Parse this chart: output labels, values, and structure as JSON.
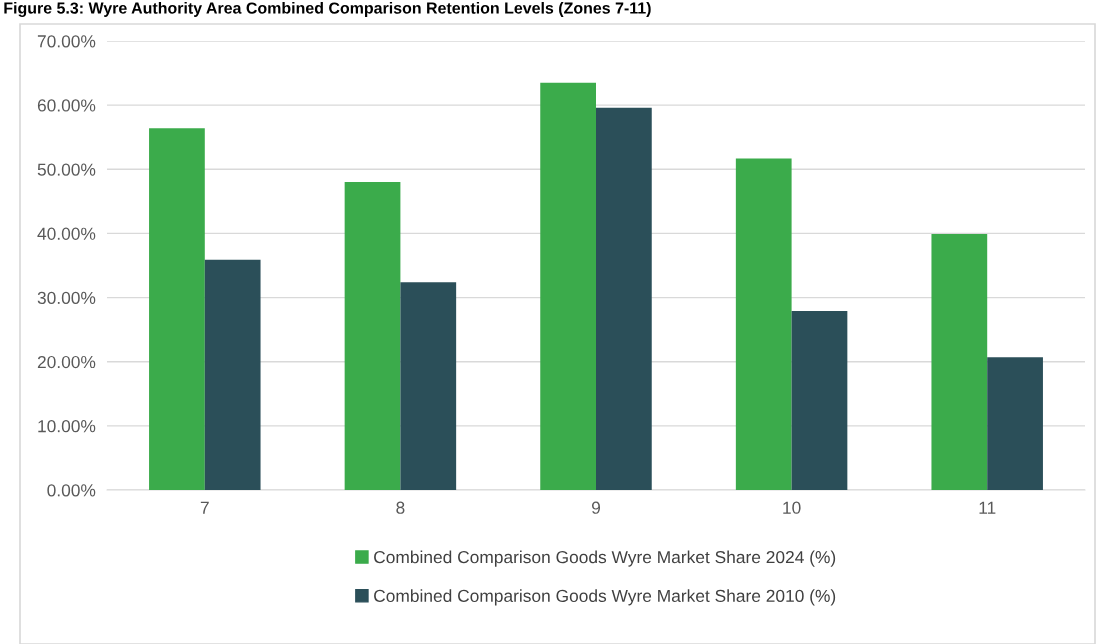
{
  "chart_data": {
    "type": "bar",
    "title": "Figure 5.3: Wyre Authority Area Combined Comparison Retention Levels (Zones 7-11)",
    "categories": [
      "7",
      "8",
      "9",
      "10",
      "11"
    ],
    "series": [
      {
        "name": "Combined Comparison Goods Wyre Market Share 2024 (%)",
        "color": "#3bab4b",
        "values": [
          56.4,
          48.0,
          63.5,
          51.7,
          39.9
        ]
      },
      {
        "name": "Combined Comparison Goods Wyre Market Share 2010 (%)",
        "color": "#2b4f59",
        "values": [
          35.9,
          32.4,
          59.6,
          27.9,
          20.7
        ]
      }
    ],
    "ylim": [
      0,
      70
    ],
    "yticks": [
      {
        "value": 0,
        "label": "0.00%"
      },
      {
        "value": 10,
        "label": "10.00%"
      },
      {
        "value": 20,
        "label": "20.00%"
      },
      {
        "value": 30,
        "label": "30.00%"
      },
      {
        "value": 40,
        "label": "40.00%"
      },
      {
        "value": 50,
        "label": "50.00%"
      },
      {
        "value": 60,
        "label": "60.00%"
      },
      {
        "value": 70,
        "label": "70.00%"
      }
    ],
    "grid": "y",
    "legend": "bottom"
  }
}
